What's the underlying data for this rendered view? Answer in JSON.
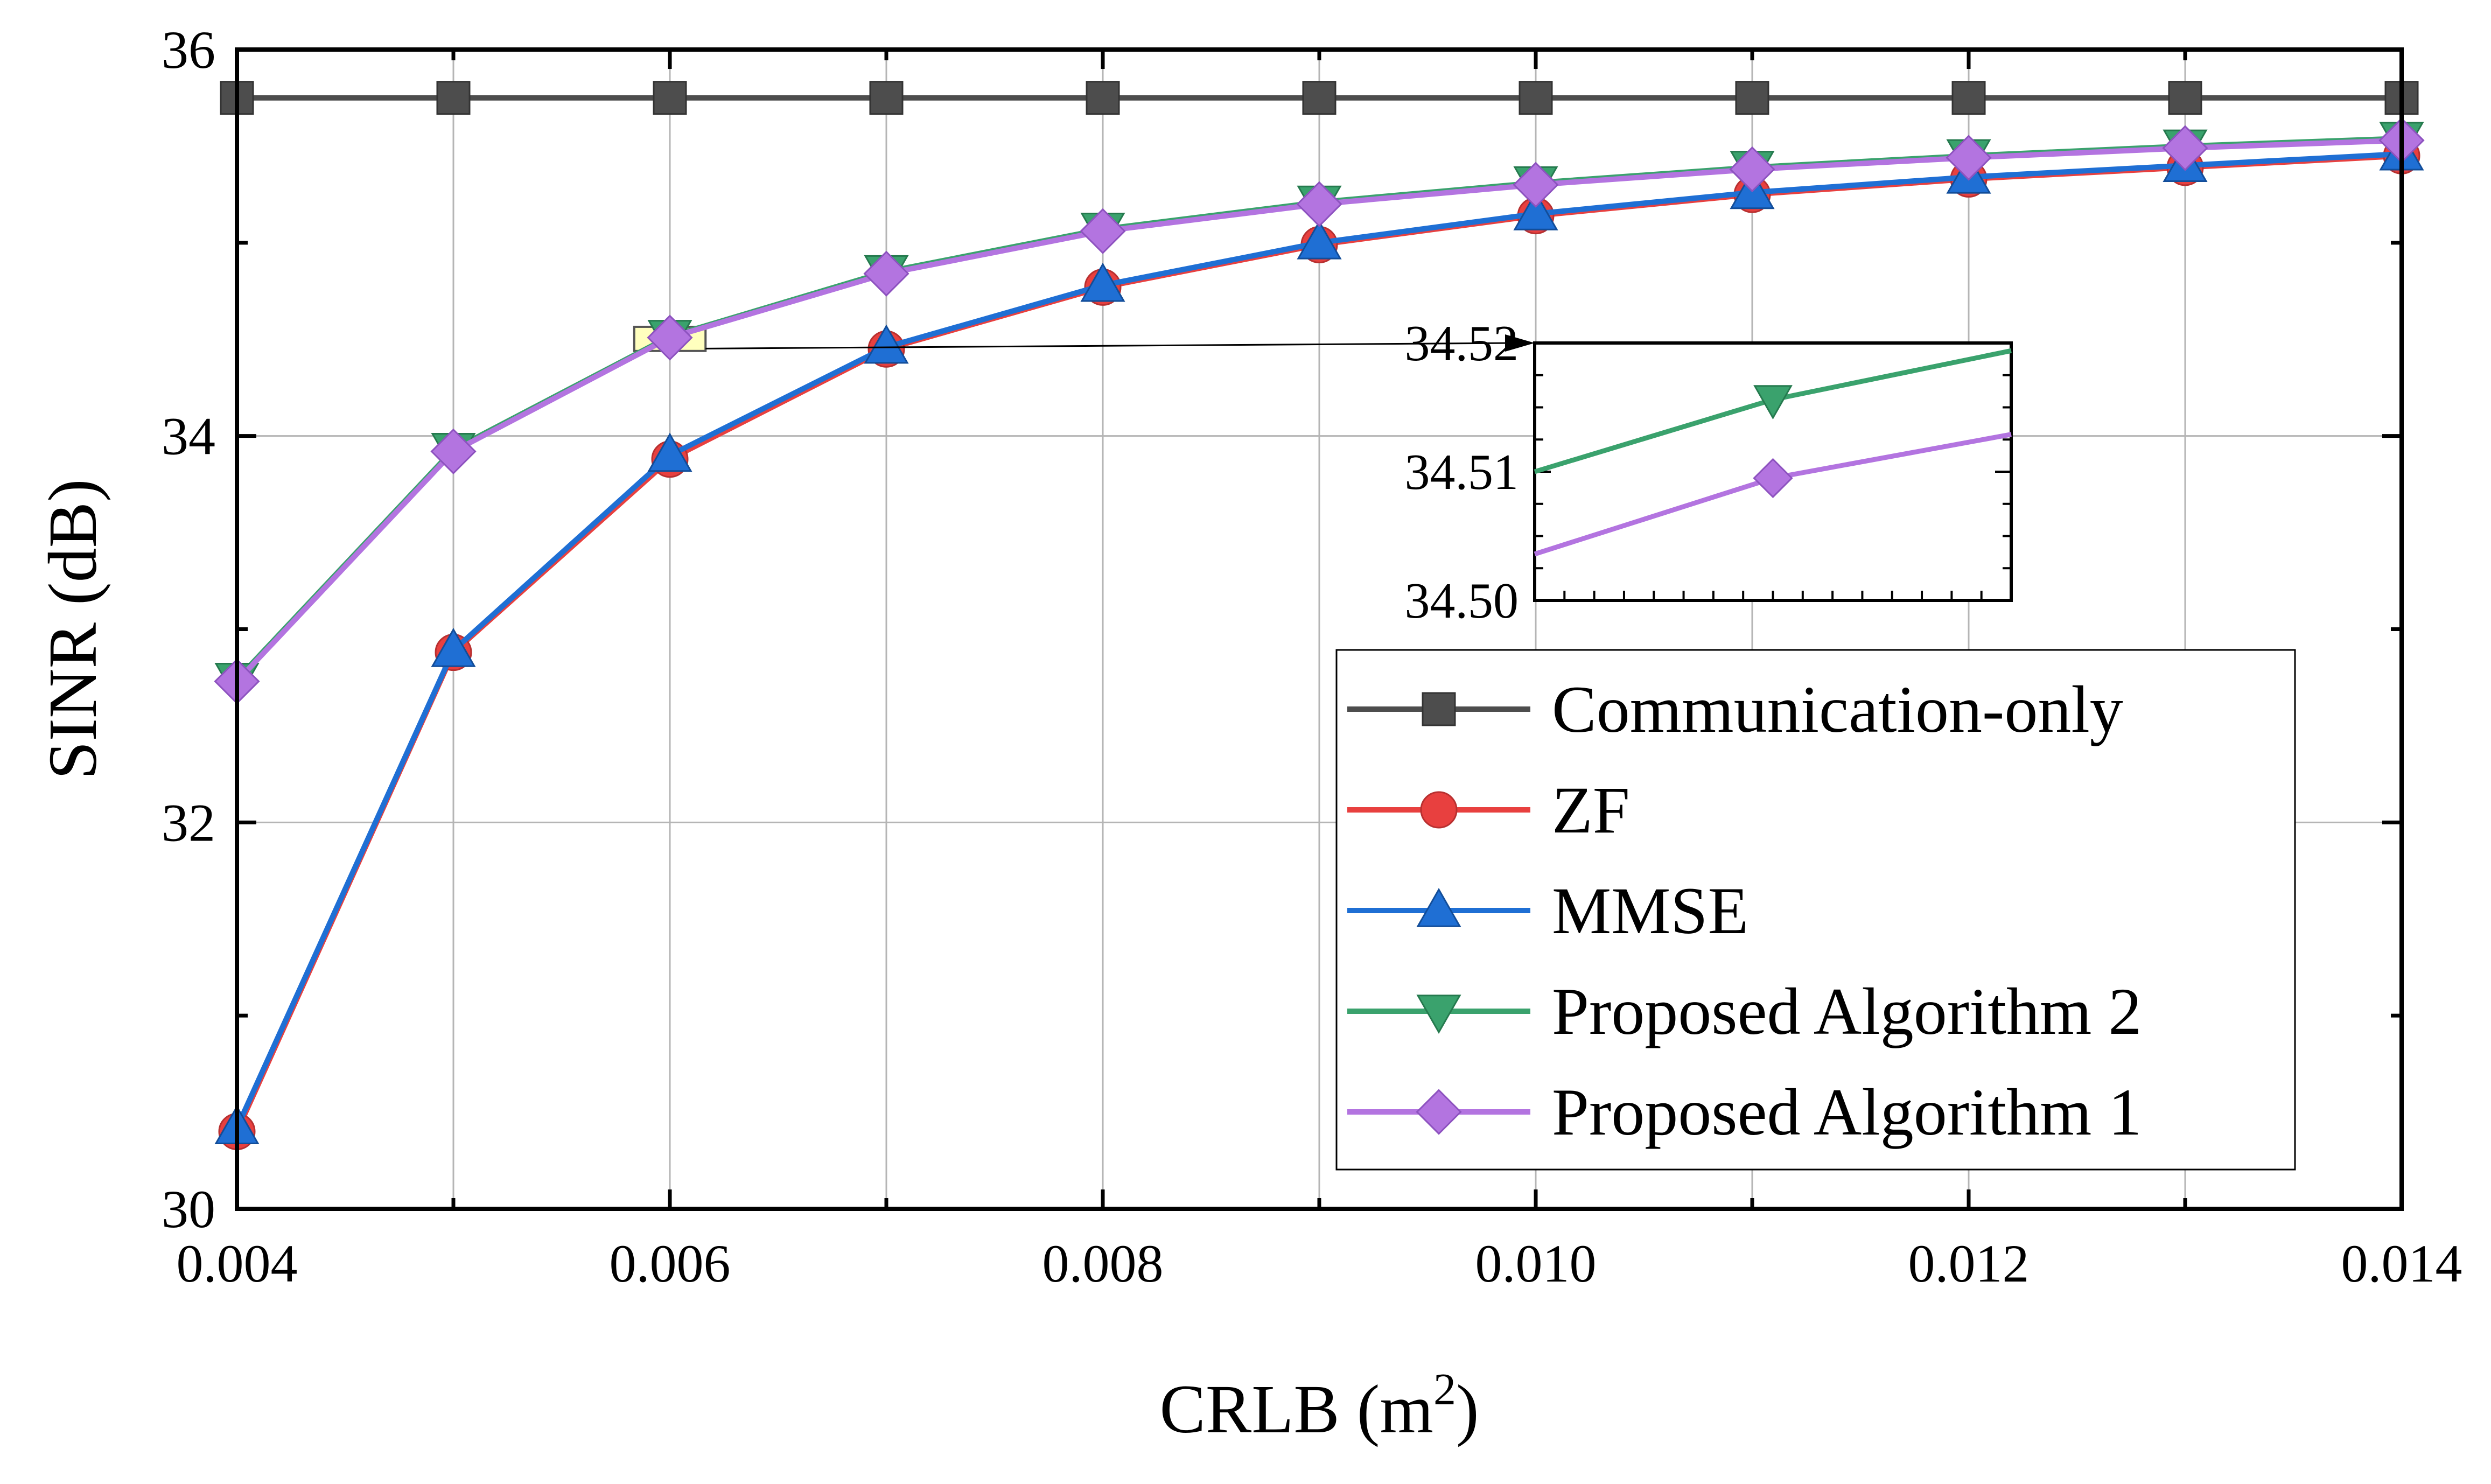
{
  "chart_data": {
    "type": "line",
    "xlabel": "CRLB (m",
    "xlabel_sup": "2",
    "xlabel_close": ")",
    "ylabel": "SINR (dB)",
    "xlim": [
      0.004,
      0.014
    ],
    "ylim": [
      30,
      36
    ],
    "grid": true,
    "x": [
      0.004,
      0.005,
      0.006,
      0.007,
      0.008,
      0.009,
      0.01,
      0.011,
      0.012,
      0.013,
      0.014
    ],
    "xticks": [
      0.004,
      0.006,
      0.008,
      0.01,
      0.012,
      0.014
    ],
    "xtick_labels": [
      "0.004",
      "0.006",
      "0.008",
      "0.010",
      "0.012",
      "0.014"
    ],
    "yticks": [
      30,
      32,
      34,
      36
    ],
    "ytick_labels": [
      "30",
      "32",
      "34",
      "36"
    ],
    "legend_position": "lower-right",
    "series": [
      {
        "name": "Communication-only",
        "color": "#4d4d4d",
        "marker": "square",
        "values": [
          35.75,
          35.75,
          35.75,
          35.75,
          35.75,
          35.75,
          35.75,
          35.75,
          35.75,
          35.75,
          35.75
        ]
      },
      {
        "name": "ZF",
        "color": "#e8403f",
        "marker": "circle",
        "values": [
          30.4,
          32.88,
          33.88,
          34.45,
          34.77,
          34.99,
          35.14,
          35.25,
          35.33,
          35.39,
          35.45
        ]
      },
      {
        "name": "MMSE",
        "color": "#1f6fd4",
        "marker": "triangle-up",
        "values": [
          30.42,
          32.89,
          33.9,
          34.46,
          34.78,
          35.0,
          35.15,
          35.26,
          35.34,
          35.4,
          35.46
        ]
      },
      {
        "name": "Proposed Algorithm 2",
        "color": "#3aa26d",
        "marker": "triangle-down",
        "values": [
          32.74,
          33.93,
          34.515,
          34.85,
          35.07,
          35.21,
          35.31,
          35.39,
          35.45,
          35.5,
          35.54
        ]
      },
      {
        "name": "Proposed Algorithm 1",
        "color": "#b374e0",
        "marker": "diamond",
        "values": [
          32.73,
          33.92,
          34.509,
          34.84,
          35.06,
          35.2,
          35.3,
          35.38,
          35.44,
          35.49,
          35.53
        ]
      }
    ],
    "inset": {
      "xlim": [
        0.00588,
        0.00612
      ],
      "ylim": [
        34.5,
        34.52
      ],
      "yticks": [
        34.5,
        34.51,
        34.52
      ],
      "ytick_labels": [
        "34.50",
        "34.51",
        "34.52"
      ],
      "series": [
        {
          "name": "Proposed Algorithm 2",
          "color": "#3aa26d",
          "marker": "triangle-down",
          "x": [
            0.00588,
            0.006,
            0.00612
          ],
          "values": [
            34.51,
            34.5156,
            34.5194
          ]
        },
        {
          "name": "Proposed Algorithm 1",
          "color": "#b374e0",
          "marker": "diamond",
          "x": [
            0.00588,
            0.006,
            0.00612
          ],
          "values": [
            34.5036,
            34.5095,
            34.5129
          ]
        }
      ]
    }
  }
}
